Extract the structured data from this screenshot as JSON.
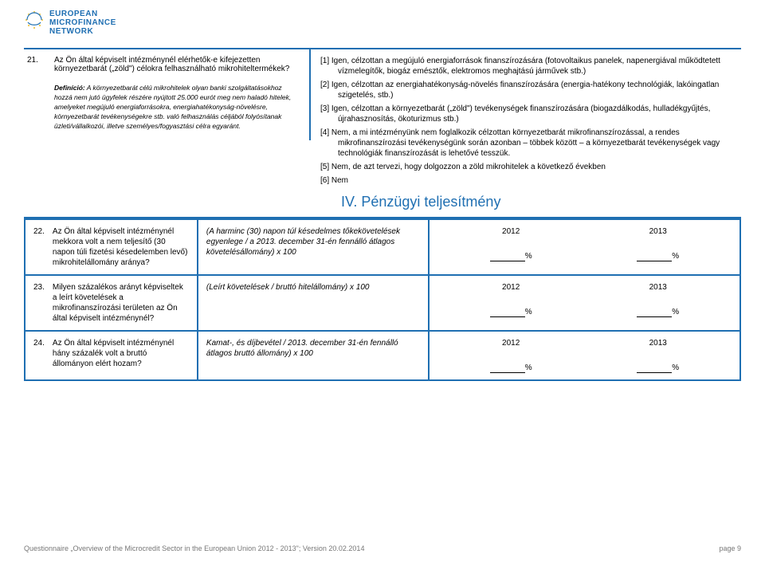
{
  "brand": {
    "line1": "EUROPEAN",
    "line2": "MICROFINANCE",
    "line3": "NETWORK",
    "star_color": "#f2c94c",
    "ring_color": "#1f6fb2"
  },
  "q21": {
    "num": "21.",
    "text": "Az Ön által képviselt intézménynél elérhetők-e kifejezetten környezetbarát („zöld\") célokra felhasználható mikrohiteltermékek?",
    "def_label": "Definíció:",
    "def_text": " A környezetbarát célú mikrohitelek olyan banki szolgáltatásokhoz hozzá nem jutó ügyfelek részére nyújtott 25.000 eurót meg nem haladó hitelek, amelyeket megújuló energiaforrásokra, energiahatékonyság-növelésre, környezetbarát tevékenységekre stb. való felhasználás céljából folyósítanak üzleti/vállalkozói, illetve személyes/fogyasztási célra egyaránt."
  },
  "answers21": {
    "a1": "[1] Igen, célzottan a megújuló energiaforrások finanszírozására (fotovoltaikus panelek, napenergiával működtetett vízmelegítők, biogáz emésztők, elektromos meghajtású járművek stb.)",
    "a2": "[2] Igen, célzottan az energiahatékonyság-növelés finanszírozására (energia-hatékony technológiák, lakóingatlan szigetelés, stb.)",
    "a3": "[3] Igen, célzottan a környezetbarát („zöld\") tevékenységek finanszírozására (biogazdálkodás, hulladékgyűjtés, újrahasznosítás, ökoturizmus stb.)",
    "a4": "[4] Nem, a mi intézményünk nem foglalkozik célzottan környezetbarát mikrofinanszírozással, a rendes mikrofinanszírozási tevékenységünk során azonban – többek között – a környezetbarát tevékenységek vagy technológiák finanszírozását is lehetővé tesszük.",
    "a5": "[5] Nem, de azt tervezi, hogy dolgozzon a zöld mikrohitelek a következő években",
    "a6": "[6] Nem"
  },
  "section4": "IV. Pénzügyi teljesítmény",
  "table": {
    "rows": [
      {
        "num": "22.",
        "q": "Az Ön által képviselt intézménynél mekkora volt a nem teljesítő (30 napon túli fizetési késedelemben levő) mikrohitelállomány aránya?",
        "formula": "(A harminc (30) napon túl késedelmes tőkekövetelések egyenlege / a 2013. december 31-én fennálló átlagos követelésállomány) x 100",
        "y1": "2012",
        "y2": "2013",
        "unit": "%"
      },
      {
        "num": "23.",
        "q": "Milyen százalékos arányt képviseltek a leírt követelések a mikrofinanszírozási területen az Ön által képviselt intézménynél?",
        "formula": "(Leírt követelések / bruttó hitelállomány) x 100",
        "y1": "2012",
        "y2": "2013",
        "unit": "%"
      },
      {
        "num": "24.",
        "q": "Az Ön által képviselt intézménynél hány százalék volt a bruttó állományon elért hozam?",
        "formula": "Kamat-, és díjbevétel / 2013. december 31-én fennálló átlagos bruttó állomány) x 100",
        "y1": "2012",
        "y2": "2013",
        "unit": "%"
      }
    ]
  },
  "footer": {
    "left": "Questionnaire „Overview of the Microcredit Sector in the European Union 2012 - 2013\"; Version 20.02.2014",
    "right": "page 9"
  }
}
